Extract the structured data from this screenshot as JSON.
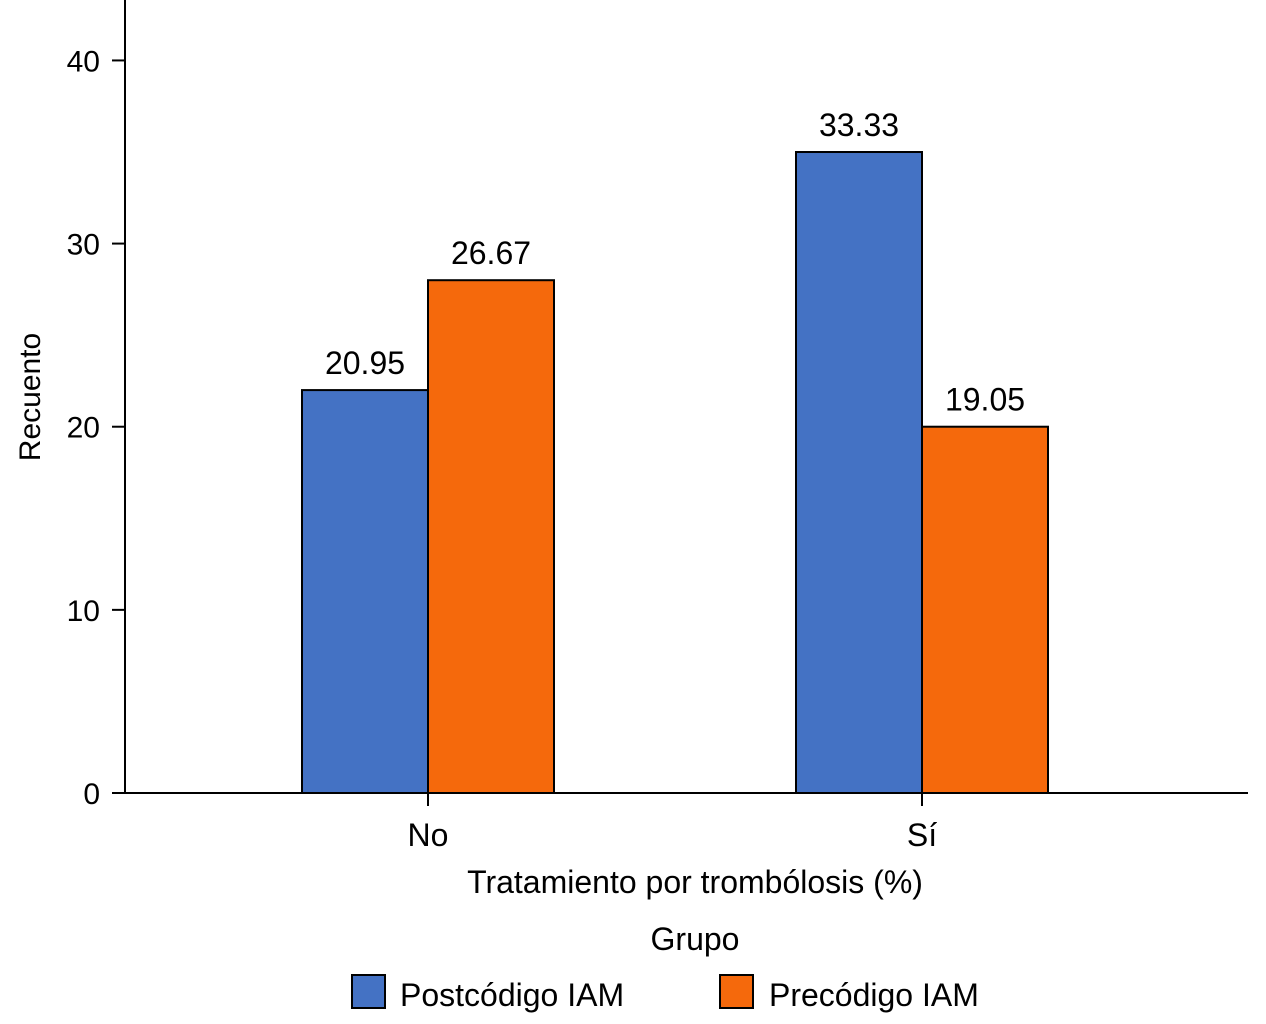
{
  "chart_data": {
    "type": "bar",
    "title": "",
    "xlabel": "Tratamiento por trombólosis (%)",
    "ylabel": "Recuento",
    "categories": [
      "No",
      "Sí"
    ],
    "series": [
      {
        "name": "Postcódigo IAM",
        "color": "#4472c4",
        "values": [
          22,
          35
        ],
        "labels": [
          "20.95",
          "33.33"
        ]
      },
      {
        "name": "Precódigo IAM",
        "color": "#f5690c",
        "values": [
          28,
          20
        ],
        "labels": [
          "26.67",
          "19.05"
        ]
      }
    ],
    "yticks": [
      "0",
      "10",
      "20",
      "30",
      "40"
    ],
    "ylim": [
      0,
      43.3
    ],
    "grid": false,
    "legend": {
      "title": "Grupo",
      "placement": "bottom-center"
    }
  }
}
